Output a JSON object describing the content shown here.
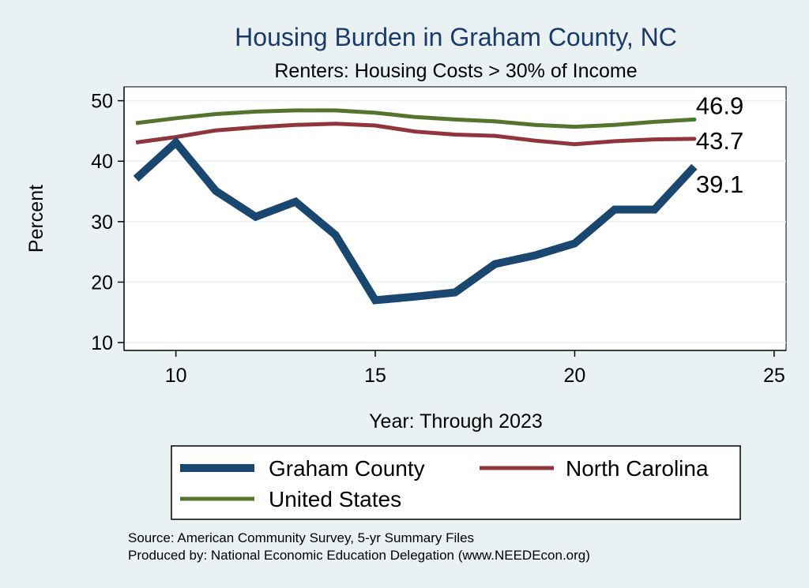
{
  "chart_data": {
    "type": "line",
    "title": "Housing Burden in Graham County, NC",
    "subtitle": "Renters: Housing Costs > 30% of Income",
    "xlabel": "Year: Through 2023",
    "ylabel": "Percent",
    "xlim": [
      8.7,
      25.3
    ],
    "ylim": [
      8.7,
      52.3
    ],
    "xticks": [
      10,
      15,
      20,
      25
    ],
    "yticks": [
      10,
      20,
      30,
      40,
      50
    ],
    "grid": true,
    "series": [
      {
        "name": "Graham County",
        "color": "#1a476f",
        "x": [
          9,
          10,
          11,
          12,
          13,
          14,
          15,
          16,
          17,
          18,
          19,
          20,
          21,
          22,
          23
        ],
        "y": [
          37.1,
          43.1,
          35.1,
          30.8,
          33.3,
          27.8,
          17.0,
          17.6,
          18.3,
          23.0,
          24.4,
          26.4,
          32.0,
          32.0,
          39.1
        ],
        "end_label": "39.1"
      },
      {
        "name": "North Carolina",
        "color": "#90353b",
        "x": [
          9,
          10,
          11,
          12,
          13,
          14,
          15,
          16,
          17,
          18,
          19,
          20,
          21,
          22,
          23
        ],
        "y": [
          43.1,
          44.0,
          45.1,
          45.6,
          46.0,
          46.2,
          45.9,
          44.9,
          44.4,
          44.2,
          43.4,
          42.8,
          43.3,
          43.6,
          43.7
        ],
        "end_label": "43.7"
      },
      {
        "name": "United States",
        "color": "#55752f",
        "x": [
          9,
          10,
          11,
          12,
          13,
          14,
          15,
          16,
          17,
          18,
          19,
          20,
          21,
          22,
          23
        ],
        "y": [
          46.3,
          47.1,
          47.8,
          48.2,
          48.4,
          48.4,
          48.0,
          47.3,
          46.9,
          46.6,
          46.0,
          45.7,
          46.0,
          46.5,
          46.9
        ],
        "end_label": "46.9"
      }
    ],
    "legend": {
      "position": "bottom",
      "entries": [
        "Graham County",
        "North Carolina",
        "United States"
      ]
    },
    "notes": [
      "Source: American Community Survey, 5-yr Summary Files",
      "Produced by: National Economic Education Delegation (www.NEEDEcon.org)"
    ]
  }
}
